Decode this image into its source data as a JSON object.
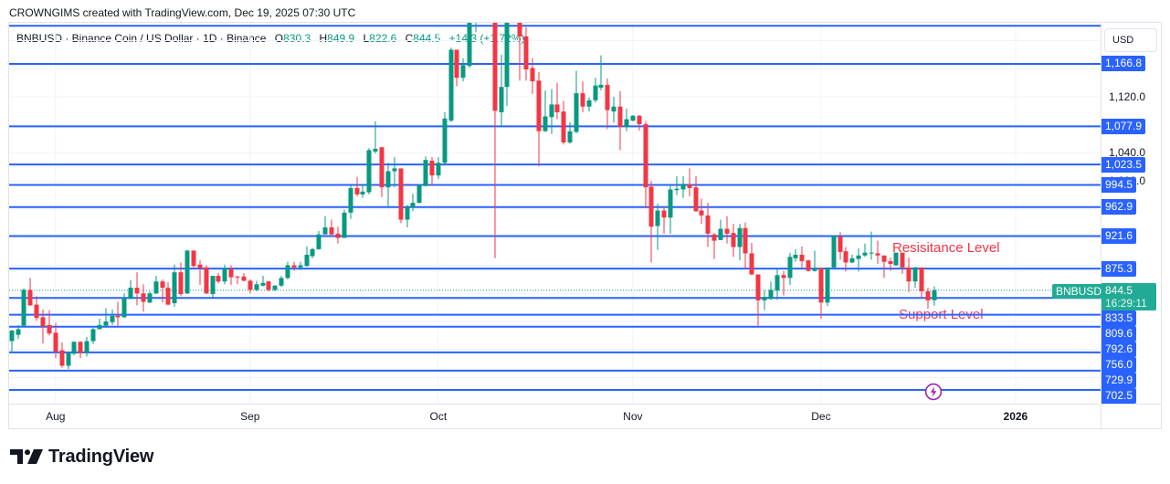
{
  "credit": "CROWNGIMS created with TradingView.com, Dec 19, 2025 07:30 UTC",
  "legend": {
    "title_line": "BNBUSD · Binance Coin / US Dollar · 1D · Binance",
    "symbol": "BNBUSD",
    "description": "Binance Coin / US Dollar",
    "interval": "1D",
    "exchange": "Binance",
    "open_label": "O",
    "open": "830.3",
    "high_label": "H",
    "high": "849.9",
    "low_label": "L",
    "low": "822.6",
    "close_label": "C",
    "close": "844.5",
    "change": "+14.3 (+1.72%)"
  },
  "price_axis": {
    "currency_button": "USD",
    "current_price": {
      "symbol_tag": "BNBUSD",
      "price": 844.5,
      "label": "844.5",
      "countdown": "16:29:11"
    }
  },
  "annotations": {
    "resistance": {
      "text": "Resisitance Level",
      "color": "#f23645"
    },
    "support": {
      "text": "Support Level",
      "color": "#ec3a66"
    }
  },
  "event_marker": {
    "icon": "lightning-icon",
    "color": "#9c27b0"
  },
  "footer": {
    "brand": "TradingView"
  },
  "colors": {
    "up": "#089981",
    "down": "#f23645",
    "level_line": "#2962ff",
    "current_price": "#22ab94",
    "grid": "#f0f3fa",
    "text": "#131722"
  },
  "chart_data": {
    "type": "candlestick",
    "title": "BNBUSD · Binance Coin / US Dollar · 1D · Binance",
    "xlabel": "",
    "ylabel": "USD",
    "ylim": [
      683,
      1225.3
    ],
    "grid": true,
    "x_ticks": [
      {
        "label": "Aug",
        "index": 7
      },
      {
        "label": "Sep",
        "index": 38
      },
      {
        "label": "Oct",
        "index": 68
      },
      {
        "label": "Nov",
        "index": 99
      },
      {
        "label": "Dec",
        "index": 129
      },
      {
        "label": "2026",
        "index": 160,
        "bold": true
      }
    ],
    "y_ticks": [
      {
        "price": 1120,
        "label": "1,120.0"
      },
      {
        "price": 1040,
        "label": "1,040.0"
      },
      {
        "price": 1000,
        "label": "1,000.0"
      }
    ],
    "levels": [
      {
        "price": 1221,
        "label": null
      },
      {
        "price": 1166.8,
        "label": "1,166.8"
      },
      {
        "price": 1077.9,
        "label": "1,077.9"
      },
      {
        "price": 1023.5,
        "label": "1,023.5"
      },
      {
        "price": 994.5,
        "label": "994.5"
      },
      {
        "price": 962.9,
        "label": "962.9"
      },
      {
        "price": 921.6,
        "label": "921.6"
      },
      {
        "price": 875.3,
        "label": "875.3"
      },
      {
        "price": 833.5,
        "label": "833.5"
      },
      {
        "price": 809.6,
        "label": "809.6"
      },
      {
        "price": 792.6,
        "label": "792.6"
      },
      {
        "price": 756.0,
        "label": "756.0"
      },
      {
        "price": 729.9,
        "label": "729.9"
      },
      {
        "price": 702.5,
        "label": "702.5"
      }
    ],
    "annotations": [
      {
        "text": "Resisitance Level",
        "near_level": 921.6
      },
      {
        "text": "Support Level",
        "near_level": 809.6
      }
    ],
    "columns": [
      "date",
      "open",
      "high",
      "low",
      "close"
    ],
    "candles": [
      [
        "Jul 25",
        772,
        788,
        756,
        787
      ],
      [
        "Jul 26",
        781,
        795,
        775,
        789
      ],
      [
        "Jul 27",
        794,
        847,
        792,
        845
      ],
      [
        "Jul 28",
        845,
        862,
        822,
        823
      ],
      [
        "Jul 29",
        824,
        836,
        801,
        805
      ],
      [
        "Jul 30",
        806,
        817,
        769,
        793
      ],
      [
        "Jul 31",
        795,
        816,
        780,
        783
      ],
      [
        "Aug 1",
        784,
        798,
        748,
        757
      ],
      [
        "Aug 2",
        759,
        770,
        734,
        737
      ],
      [
        "Aug 3",
        737,
        757,
        732,
        755
      ],
      [
        "Aug 4",
        754,
        772,
        752,
        771
      ],
      [
        "Aug 5",
        771,
        772,
        748,
        755
      ],
      [
        "Aug 6",
        755,
        778,
        750,
        772
      ],
      [
        "Aug 7",
        772,
        791,
        768,
        789
      ],
      [
        "Aug 8",
        789,
        804,
        789,
        795
      ],
      [
        "Aug 9",
        794,
        819,
        794,
        800
      ],
      [
        "Aug 10",
        799,
        817,
        795,
        808
      ],
      [
        "Aug 11",
        808,
        828,
        794,
        806
      ],
      [
        "Aug 12",
        806,
        840,
        805,
        833
      ],
      [
        "Aug 13",
        832,
        859,
        832,
        848
      ],
      [
        "Aug 14",
        848,
        870,
        823,
        840
      ],
      [
        "Aug 15",
        840,
        853,
        814,
        828
      ],
      [
        "Aug 16",
        827,
        843,
        826,
        840
      ],
      [
        "Aug 17",
        840,
        865,
        839,
        857
      ],
      [
        "Aug 18",
        857,
        860,
        827,
        848
      ],
      [
        "Aug 19",
        848,
        856,
        823,
        824
      ],
      [
        "Aug 20",
        826,
        881,
        821,
        870
      ],
      [
        "Aug 21",
        870,
        884,
        836,
        839
      ],
      [
        "Aug 22",
        840,
        902,
        839,
        901
      ],
      [
        "Aug 23",
        901,
        901,
        877,
        879
      ],
      [
        "Aug 24",
        881,
        887,
        852,
        876
      ],
      [
        "Aug 25",
        877,
        880,
        839,
        840
      ],
      [
        "Aug 26",
        839,
        865,
        834,
        865
      ],
      [
        "Aug 27",
        865,
        869,
        854,
        857
      ],
      [
        "Aug 28",
        857,
        881,
        853,
        876
      ],
      [
        "Aug 29",
        875,
        880,
        852,
        863
      ],
      [
        "Aug 30",
        864,
        865,
        853,
        863
      ],
      [
        "Aug 31",
        864,
        869,
        857,
        858
      ],
      [
        "Sep 1",
        858,
        860,
        840,
        845
      ],
      [
        "Sep 2",
        845,
        858,
        843,
        853
      ],
      [
        "Sep 3",
        851,
        865,
        850,
        855
      ],
      [
        "Sep 4",
        857,
        858,
        843,
        845
      ],
      [
        "Sep 5",
        845,
        852,
        843,
        851
      ],
      [
        "Sep 6",
        851,
        865,
        849,
        862
      ],
      [
        "Sep 7",
        862,
        885,
        860,
        880
      ],
      [
        "Sep 8",
        880,
        885,
        872,
        877
      ],
      [
        "Sep 9",
        877,
        885,
        873,
        880
      ],
      [
        "Sep 10",
        879,
        907,
        878,
        895
      ],
      [
        "Sep 11",
        893,
        905,
        890,
        903
      ],
      [
        "Sep 12",
        903,
        929,
        902,
        924
      ],
      [
        "Sep 13",
        924,
        950,
        924,
        934
      ],
      [
        "Sep 14",
        934,
        945,
        921,
        924
      ],
      [
        "Sep 15",
        925,
        935,
        911,
        919
      ],
      [
        "Sep 16",
        919,
        959,
        919,
        955
      ],
      [
        "Sep 17",
        955,
        994,
        946,
        990
      ],
      [
        "Sep 18",
        990,
        1006,
        978,
        981
      ],
      [
        "Sep 19",
        981,
        995,
        976,
        985
      ],
      [
        "Sep 20",
        984,
        1047,
        981,
        1044
      ],
      [
        "Sep 21",
        1042,
        1085,
        1039,
        1046
      ],
      [
        "Sep 22",
        1048,
        1049,
        977,
        991
      ],
      [
        "Sep 23",
        991,
        1026,
        963,
        1014
      ],
      [
        "Sep 24",
        1014,
        1034,
        991,
        1018
      ],
      [
        "Sep 25",
        1018,
        1018,
        940,
        945
      ],
      [
        "Sep 26",
        945,
        966,
        934,
        963
      ],
      [
        "Sep 27",
        962,
        982,
        957,
        969
      ],
      [
        "Sep 28",
        969,
        995,
        968,
        994
      ],
      [
        "Sep 29",
        993,
        1035,
        992,
        1030
      ],
      [
        "Sep 30",
        1029,
        1034,
        994,
        1008
      ],
      [
        "Oct 1",
        1008,
        1034,
        1003,
        1026
      ],
      [
        "Oct 2",
        1026,
        1098,
        1023,
        1089
      ],
      [
        "Oct 3",
        1086,
        1190,
        1084,
        1187
      ],
      [
        "Oct 4",
        1187,
        1187,
        1135,
        1147
      ],
      [
        "Oct 5",
        1147,
        1175,
        1142,
        1165
      ],
      [
        "Oct 6",
        1164,
        null,
        1161,
        null,
        "up"
      ],
      [
        "Oct 7",
        null,
        null,
        1212,
        null,
        "up"
      ],
      [
        "Oct 8",
        null,
        null,
        null,
        null
      ],
      [
        "Oct 9",
        null,
        null,
        null,
        null
      ],
      [
        "Oct 10",
        null,
        null,
        890,
        1100,
        "down"
      ],
      [
        "Oct 11",
        1098,
        1180,
        1077,
        1134
      ],
      [
        "Oct 12",
        1134,
        null,
        1107,
        null,
        "up"
      ],
      [
        "Oct 13",
        null,
        null,
        null,
        null
      ],
      [
        "Oct 14",
        null,
        null,
        1143,
        1206,
        "down"
      ],
      [
        "Oct 15",
        1206,
        1219,
        1143,
        1159
      ],
      [
        "Oct 16",
        1161,
        1175,
        1124,
        1142
      ],
      [
        "Oct 17",
        1143,
        1155,
        1021,
        1071
      ],
      [
        "Oct 18",
        1071,
        1129,
        1070,
        1092
      ],
      [
        "Oct 19",
        1091,
        1131,
        1067,
        1109
      ],
      [
        "Oct 20",
        1109,
        1140,
        1088,
        1098
      ],
      [
        "Oct 21",
        1099,
        1114,
        1052,
        1055
      ],
      [
        "Oct 22",
        1055,
        1084,
        1053,
        1071
      ],
      [
        "Oct 23",
        1070,
        1157,
        1068,
        1125
      ],
      [
        "Oct 24",
        1125,
        1142,
        1098,
        1106
      ],
      [
        "Oct 25",
        1106,
        1119,
        1099,
        1115
      ],
      [
        "Oct 26",
        1115,
        1147,
        1112,
        1136
      ],
      [
        "Oct 27",
        1133,
        1179,
        1129,
        1137
      ],
      [
        "Oct 28",
        1137,
        1146,
        1074,
        1101
      ],
      [
        "Oct 29",
        1099,
        1120,
        1083,
        1106
      ],
      [
        "Oct 30",
        1106,
        1128,
        1044,
        1077
      ],
      [
        "Oct 31",
        1077,
        1103,
        1071,
        1088
      ],
      [
        "Nov 1",
        1086,
        1094,
        1085,
        1093
      ],
      [
        "Nov 2",
        1093,
        1094,
        1072,
        1081
      ],
      [
        "Nov 3",
        1081,
        1085,
        961,
        991
      ],
      [
        "Nov 4",
        992,
        1000,
        884,
        935
      ],
      [
        "Nov 5",
        936,
        968,
        902,
        958
      ],
      [
        "Nov 6",
        958,
        963,
        925,
        948
      ],
      [
        "Nov 7",
        948,
        995,
        925,
        988
      ],
      [
        "Nov 8",
        987,
        1007,
        980,
        989
      ],
      [
        "Nov 9",
        988,
        1007,
        976,
        996
      ],
      [
        "Nov 10",
        995,
        1018,
        978,
        990
      ],
      [
        "Nov 11",
        991,
        1007,
        956,
        957
      ],
      [
        "Nov 12",
        958,
        975,
        939,
        951
      ],
      [
        "Nov 13",
        951,
        969,
        906,
        925
      ],
      [
        "Nov 14",
        924,
        926,
        889,
        915
      ],
      [
        "Nov 15",
        916,
        945,
        916,
        932
      ],
      [
        "Nov 16",
        932,
        950,
        911,
        925
      ],
      [
        "Nov 17",
        926,
        939,
        892,
        906
      ],
      [
        "Nov 18",
        906,
        939,
        887,
        933
      ],
      [
        "Nov 19",
        933,
        941,
        875,
        897
      ],
      [
        "Nov 20",
        897,
        912,
        866,
        867
      ],
      [
        "Nov 21",
        867,
        867,
        794,
        830
      ],
      [
        "Nov 22",
        830,
        844,
        816,
        835
      ],
      [
        "Nov 23",
        832,
        857,
        831,
        845
      ],
      [
        "Nov 24",
        844,
        876,
        831,
        866
      ],
      [
        "Nov 25",
        866,
        872,
        837,
        862
      ],
      [
        "Nov 26",
        862,
        898,
        852,
        892
      ],
      [
        "Nov 27",
        890,
        903,
        885,
        895
      ],
      [
        "Nov 28",
        895,
        907,
        877,
        886
      ],
      [
        "Nov 29",
        887,
        888,
        871,
        872
      ],
      [
        "Nov 30",
        872,
        901,
        871,
        876
      ],
      [
        "Dec 1",
        876,
        877,
        804,
        827
      ],
      [
        "Dec 2",
        827,
        877,
        822,
        877
      ],
      [
        "Dec 3",
        877,
        923,
        876,
        922
      ],
      [
        "Dec 4",
        921,
        927,
        888,
        899
      ],
      [
        "Dec 5",
        900,
        906,
        871,
        884
      ],
      [
        "Dec 6",
        884,
        895,
        883,
        890
      ],
      [
        "Dec 7",
        889,
        904,
        871,
        894
      ],
      [
        "Dec 8",
        894,
        911,
        892,
        898
      ],
      [
        "Dec 9",
        897,
        928,
        888,
        898
      ],
      [
        "Dec 10",
        897,
        915,
        882,
        894
      ],
      [
        "Dec 11",
        894,
        894,
        862,
        885
      ],
      [
        "Dec 12",
        886,
        891,
        872,
        882
      ],
      [
        "Dec 13",
        880,
        898,
        879,
        898
      ],
      [
        "Dec 14",
        898,
        898,
        868,
        877
      ],
      [
        "Dec 15",
        877,
        891,
        842,
        857
      ],
      [
        "Dec 16",
        857,
        878,
        848,
        877
      ],
      [
        "Dec 17",
        877,
        877,
        833,
        843
      ],
      [
        "Dec 18",
        843,
        848,
        818,
        830
      ],
      [
        "Dec 19",
        830.3,
        849.9,
        822.6,
        844.5
      ]
    ]
  }
}
